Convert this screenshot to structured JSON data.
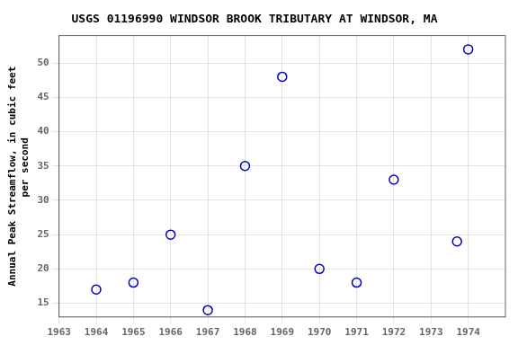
{
  "chart_data": {
    "type": "scatter",
    "title": "USGS 01196990 WINDSOR BROOK TRIBUTARY AT WINDSOR, MA",
    "ylabel": [
      "Annual Peak Streamflow, in cubic feet",
      "   per second"
    ],
    "x": [
      1964,
      1965,
      1966,
      1967,
      1968,
      1969,
      1970,
      1971,
      1972,
      1973.7,
      1974
    ],
    "values": [
      17,
      18,
      25,
      14,
      35,
      48,
      20,
      18,
      33,
      24,
      52
    ],
    "xlim": [
      1963,
      1975
    ],
    "ylim": [
      13,
      54
    ],
    "xticks": [
      1963,
      1964,
      1965,
      1966,
      1967,
      1968,
      1969,
      1970,
      1971,
      1972,
      1973,
      1974
    ],
    "yticks": [
      15,
      20,
      25,
      30,
      35,
      40,
      45,
      50
    ],
    "color": "#0000bb",
    "marker": "circle",
    "grid": true
  }
}
